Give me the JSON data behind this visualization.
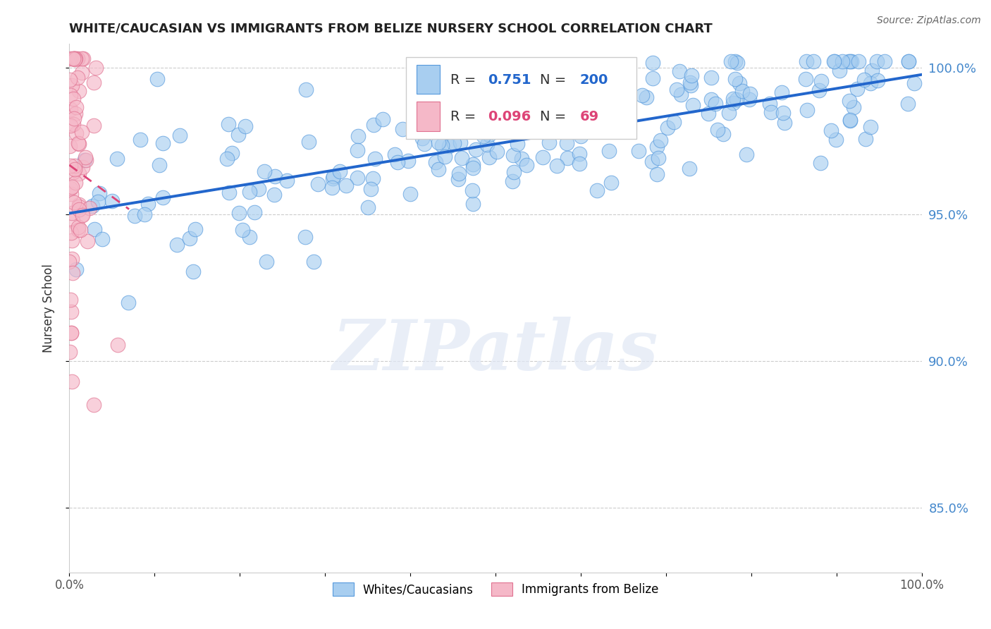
{
  "title": "WHITE/CAUCASIAN VS IMMIGRANTS FROM BELIZE NURSERY SCHOOL CORRELATION CHART",
  "source": "Source: ZipAtlas.com",
  "ylabel": "Nursery School",
  "watermark": "ZIPatlas",
  "xlim": [
    0.0,
    1.0
  ],
  "ylim": [
    0.828,
    1.008
  ],
  "yticks": [
    0.85,
    0.9,
    0.95,
    1.0
  ],
  "ytick_labels": [
    "85.0%",
    "90.0%",
    "95.0%",
    "100.0%"
  ],
  "xticks": [
    0.0,
    1.0
  ],
  "xtick_labels": [
    "0.0%",
    "100.0%"
  ],
  "blue_R": 0.751,
  "blue_N": 200,
  "pink_R": 0.096,
  "pink_N": 69,
  "blue_color": "#a8cef0",
  "blue_edge_color": "#5599dd",
  "blue_line_color": "#2266cc",
  "pink_color": "#f5b8c8",
  "pink_edge_color": "#e07090",
  "pink_line_color": "#dd4477",
  "background_color": "#ffffff",
  "title_color": "#222222",
  "source_color": "#666666",
  "ytick_color": "#4488cc",
  "title_fontsize": 13,
  "legend_label_blue": "Whites/Caucasians",
  "legend_label_pink": "Immigrants from Belize"
}
